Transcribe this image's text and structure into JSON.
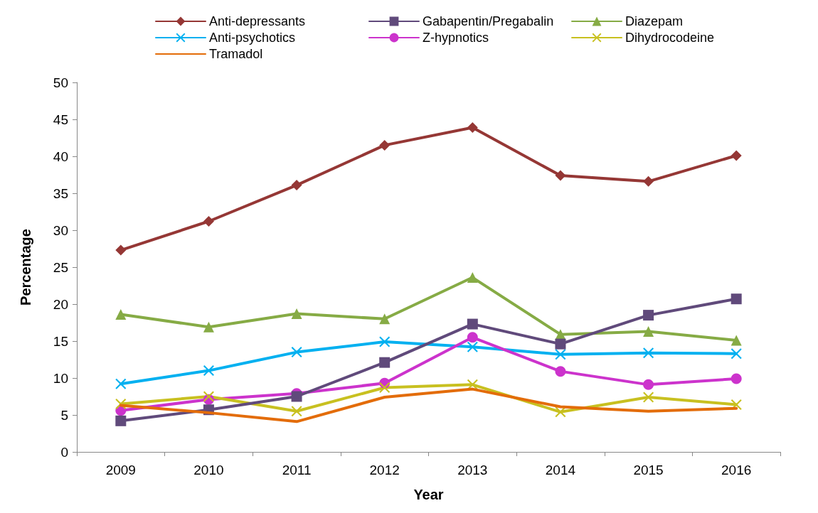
{
  "chart_data": {
    "type": "line",
    "xlabel": "Year",
    "ylabel": "Percentage",
    "categories": [
      "2009",
      "2010",
      "2011",
      "2012",
      "2013",
      "2014",
      "2015",
      "2016"
    ],
    "ylim": [
      0,
      50
    ],
    "yticks": [
      0,
      5,
      10,
      15,
      20,
      25,
      30,
      35,
      40,
      45,
      50
    ],
    "grid": false,
    "legend": "top",
    "series": [
      {
        "name": "Anti-depressants",
        "color": "#953735",
        "marker": "diamond",
        "values": [
          27.3,
          31.2,
          36.1,
          41.5,
          43.9,
          37.4,
          36.6,
          40.1
        ]
      },
      {
        "name": "Gabapentin/Pregabalin",
        "color": "#604a7b",
        "marker": "square",
        "values": [
          4.2,
          5.7,
          7.5,
          12.1,
          17.3,
          14.6,
          18.5,
          20.7
        ]
      },
      {
        "name": "Diazepam",
        "color": "#86ab45",
        "marker": "triangle",
        "values": [
          18.6,
          16.9,
          18.7,
          18.0,
          23.6,
          15.9,
          16.3,
          15.1
        ]
      },
      {
        "name": "Anti-psychotics",
        "color": "#00b0f0",
        "marker": "cross",
        "values": [
          9.2,
          11.0,
          13.5,
          14.9,
          14.2,
          13.2,
          13.4,
          13.3
        ]
      },
      {
        "name": "Z-hypnotics",
        "color": "#cc33cc",
        "marker": "circle",
        "values": [
          5.6,
          7.1,
          7.9,
          9.3,
          15.5,
          10.9,
          9.1,
          9.9
        ]
      },
      {
        "name": "Dihydrocodeine",
        "color": "#c8c020",
        "marker": "cross",
        "values": [
          6.5,
          7.5,
          5.5,
          8.7,
          9.1,
          5.4,
          7.4,
          6.4
        ]
      },
      {
        "name": "Tramadol",
        "color": "#e36c09",
        "marker": "none",
        "values": [
          6.3,
          5.3,
          4.1,
          7.4,
          8.5,
          6.1,
          5.5,
          5.9
        ]
      }
    ]
  }
}
